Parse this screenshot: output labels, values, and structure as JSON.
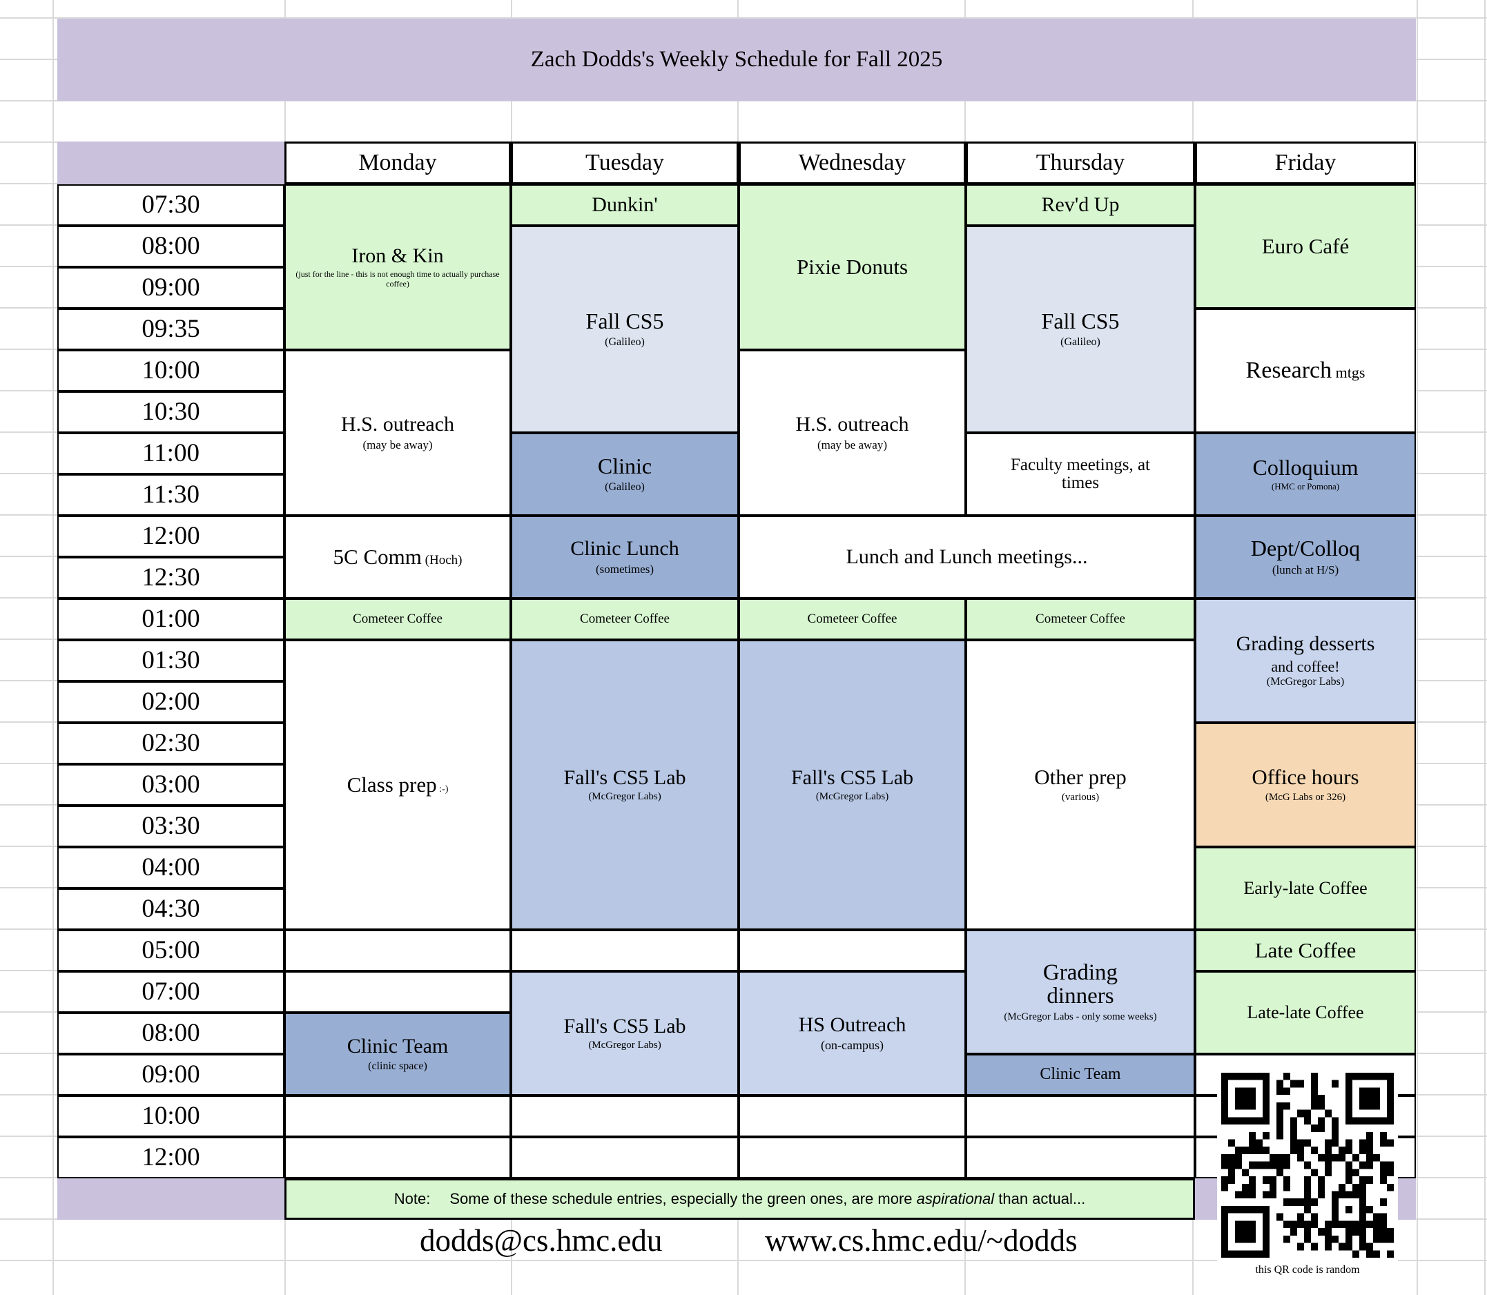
{
  "title": "Zach Dodds's Weekly Schedule for Fall 2025",
  "days": [
    "Monday",
    "Tuesday",
    "Wednesday",
    "Thursday",
    "Friday"
  ],
  "time_labels": [
    "07:30",
    "08:00",
    "09:00",
    "09:35",
    "10:00",
    "10:30",
    "11:00",
    "11:30",
    "12:00",
    "12:30",
    "01:00",
    "01:30",
    "02:00",
    "02:30",
    "03:00",
    "03:30",
    "04:00",
    "04:30",
    "05:00",
    "07:00",
    "08:00",
    "09:00",
    "10:00",
    "12:00"
  ],
  "colors": {
    "white": "#ffffff",
    "green": "#d8f7d1",
    "purple": "#cac2dd",
    "steel": "#98aed3",
    "periwinkle": "#b7c7e4",
    "lightblue": "#c8d5ed",
    "paleblue": "#dde4f0",
    "peach": "#f6d9b4",
    "grid_line": "#d9d9d9",
    "border": "#000000"
  },
  "events": [
    {
      "col": 0,
      "row": 1,
      "span": 4,
      "color": "green",
      "title": "Iron & Kin",
      "tsize": 30,
      "sub": "(just for the line - this is not enough time to actually purchase coffee)",
      "ssize": 12,
      "subw": 310
    },
    {
      "col": 0,
      "row": 5,
      "span": 4,
      "color": "white",
      "title": "H.S. outreach",
      "tsize": 30,
      "sub": "(may be away)",
      "ssize": 17
    },
    {
      "col": 0,
      "row": 9,
      "span": 2,
      "color": "white",
      "title": "5C Comm",
      "tsize": 31,
      "inline": "(Hoch)",
      "isize": 19
    },
    {
      "col": 0,
      "row": 11,
      "span": 1,
      "color": "green",
      "title": "Cometeer Coffee",
      "tsize": 19
    },
    {
      "col": 0,
      "row": 12,
      "span": 7,
      "color": "white",
      "title": "Class prep",
      "tsize": 31,
      "inline": ":-)",
      "isize": 14
    },
    {
      "col": 0,
      "row": 21,
      "span": 2,
      "color": "steel",
      "title": "Clinic Team",
      "tsize": 30,
      "sub": "(clinic space)",
      "ssize": 16
    },
    {
      "col": 1,
      "row": 1,
      "span": 1,
      "color": "green",
      "title": "Dunkin'",
      "tsize": 30
    },
    {
      "col": 1,
      "row": 2,
      "span": 5,
      "color": "paleblue",
      "title": "Fall CS5",
      "tsize": 32,
      "sub": "(Galileo)",
      "ssize": 16
    },
    {
      "col": 1,
      "row": 7,
      "span": 2,
      "color": "steel",
      "title": "Clinic",
      "tsize": 32,
      "sub": "(Galileo)",
      "ssize": 16
    },
    {
      "col": 1,
      "row": 9,
      "span": 2,
      "color": "steel",
      "title": "Clinic Lunch",
      "tsize": 30,
      "sub": "(sometimes)",
      "ssize": 17
    },
    {
      "col": 1,
      "row": 11,
      "span": 1,
      "color": "green",
      "title": "Cometeer Coffee",
      "tsize": 19
    },
    {
      "col": 1,
      "row": 12,
      "span": 7,
      "color": "periwinkle",
      "title": "Fall's CS5 Lab",
      "tsize": 30,
      "sub": "(McGregor Labs)",
      "ssize": 15
    },
    {
      "col": 1,
      "row": 20,
      "span": 3,
      "color": "lightblue",
      "title": "Fall's CS5 Lab",
      "tsize": 30,
      "sub": "(McGregor Labs)",
      "ssize": 15
    },
    {
      "col": 2,
      "row": 1,
      "span": 4,
      "color": "green",
      "title": "Pixie Donuts",
      "tsize": 31
    },
    {
      "col": 2,
      "row": 5,
      "span": 4,
      "color": "white",
      "title": "H.S. outreach",
      "tsize": 30,
      "sub": "(may be away)",
      "ssize": 17
    },
    {
      "col": 2,
      "row": 9,
      "span": 2,
      "cols": 2,
      "color": "white",
      "title": "Lunch and Lunch meetings...",
      "tsize": 30
    },
    {
      "col": 2,
      "row": 11,
      "span": 1,
      "color": "green",
      "title": "Cometeer Coffee",
      "tsize": 19
    },
    {
      "col": 2,
      "row": 12,
      "span": 7,
      "color": "periwinkle",
      "title": "Fall's CS5 Lab",
      "tsize": 30,
      "sub": "(McGregor Labs)",
      "ssize": 15
    },
    {
      "col": 2,
      "row": 20,
      "span": 3,
      "color": "lightblue",
      "title": "HS Outreach",
      "tsize": 30,
      "sub": "(on-campus)",
      "ssize": 18
    },
    {
      "col": 3,
      "row": 1,
      "span": 1,
      "color": "green",
      "title": "Rev'd Up",
      "tsize": 30
    },
    {
      "col": 3,
      "row": 2,
      "span": 5,
      "color": "paleblue",
      "title": "Fall CS5",
      "tsize": 32,
      "sub": "(Galileo)",
      "ssize": 16
    },
    {
      "col": 3,
      "row": 7,
      "span": 2,
      "color": "white",
      "title": "Faculty meetings, at times",
      "tsize": 25,
      "tw": 240
    },
    {
      "col": 3,
      "row": 11,
      "span": 1,
      "color": "green",
      "title": "Cometeer Coffee",
      "tsize": 19
    },
    {
      "col": 3,
      "row": 12,
      "span": 7,
      "color": "white",
      "title": "Other prep",
      "tsize": 31,
      "sub": "(various)",
      "ssize": 15
    },
    {
      "col": 3,
      "row": 19,
      "span": 3,
      "color": "lightblue",
      "title": "Grading dinners",
      "tsize": 33,
      "tw": 180,
      "sub": "(McGregor Labs - only some weeks)",
      "ssize": 15
    },
    {
      "col": 3,
      "row": 22,
      "span": 1,
      "color": "steel",
      "title": "Clinic Team",
      "tsize": 24
    },
    {
      "col": 4,
      "row": 1,
      "span": 3,
      "color": "green",
      "title": "Euro Café",
      "tsize": 31
    },
    {
      "col": 4,
      "row": 4,
      "span": 3,
      "color": "white",
      "title": "Research",
      "tsize": 34,
      "inline": "mtgs",
      "isize": 22
    },
    {
      "col": 4,
      "row": 7,
      "span": 2,
      "color": "steel",
      "title": "Colloquium",
      "tsize": 32,
      "sub": "(HMC or Pomona)",
      "ssize": 13
    },
    {
      "col": 4,
      "row": 9,
      "span": 2,
      "color": "steel",
      "title": "Dept/Colloq",
      "tsize": 32,
      "sub": "(lunch at H/S)",
      "ssize": 17
    },
    {
      "col": 4,
      "row": 11,
      "span": 3,
      "color": "lightblue",
      "title": "Grading desserts",
      "tsize": 30,
      "submid": "and coffee!",
      "msize": 22,
      "sub2": "(McGregor Labs)",
      "s2size": 16
    },
    {
      "col": 4,
      "row": 14,
      "span": 3,
      "color": "peach",
      "title": "Office hours",
      "tsize": 31,
      "sub": "(McG Labs or 326)",
      "ssize": 15
    },
    {
      "col": 4,
      "row": 17,
      "span": 2,
      "color": "green",
      "title": "Early-late Coffee",
      "tsize": 26
    },
    {
      "col": 4,
      "row": 19,
      "span": 1,
      "color": "green",
      "title": "Late Coffee",
      "tsize": 31
    },
    {
      "col": 4,
      "row": 20,
      "span": 2,
      "color": "green",
      "title": "Late-late Coffee",
      "tsize": 26
    }
  ],
  "empty_cells": [
    [
      0,
      19
    ],
    [
      0,
      20
    ],
    [
      0,
      23
    ],
    [
      0,
      24
    ],
    [
      1,
      19
    ],
    [
      1,
      23
    ],
    [
      1,
      24
    ],
    [
      2,
      19
    ],
    [
      2,
      23
    ],
    [
      2,
      24
    ],
    [
      3,
      23
    ],
    [
      3,
      24
    ],
    [
      4,
      22
    ],
    [
      4,
      23
    ],
    [
      4,
      24
    ]
  ],
  "note": {
    "label": "Note:",
    "pre": "Some of these schedule entries, especially the green ones, are more ",
    "italic": "aspirational",
    "post": " than actual..."
  },
  "footer": {
    "email": "dodds@cs.hmc.edu",
    "url": "www.cs.hmc.edu/~dodds"
  },
  "qr": {
    "caption": "this QR code is random"
  }
}
